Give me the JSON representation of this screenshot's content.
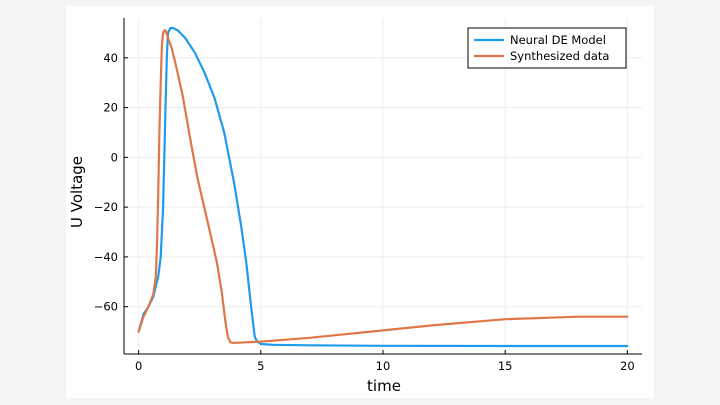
{
  "chart_data": {
    "type": "line",
    "title": "",
    "xlabel": "time",
    "ylabel": "U Voltage",
    "xlim": [
      -0.6,
      20.6
    ],
    "ylim": [
      -79,
      56
    ],
    "xticks": [
      0,
      5,
      10,
      15,
      20
    ],
    "yticks": [
      -60,
      -40,
      -20,
      0,
      20,
      40
    ],
    "grid": true,
    "legend_position": "top-right",
    "series": [
      {
        "name": "Neural DE Model",
        "color": "#1f9bed",
        "x": [
          0,
          0.2,
          0.4,
          0.6,
          0.8,
          0.9,
          1.0,
          1.05,
          1.1,
          1.15,
          1.2,
          1.3,
          1.4,
          1.6,
          1.9,
          2.3,
          2.7,
          3.1,
          3.5,
          3.9,
          4.2,
          4.4,
          4.6,
          4.75,
          4.85,
          5.0,
          5.5,
          7,
          10,
          15,
          20
        ],
        "y": [
          -70,
          -63,
          -60,
          -56,
          -48,
          -40,
          -20,
          0,
          20,
          40,
          50,
          52,
          52,
          51,
          48,
          42,
          34,
          24,
          10,
          -10,
          -28,
          -42,
          -60,
          -72,
          -74,
          -75,
          -75.3,
          -75.5,
          -75.7,
          -75.8,
          -75.8
        ]
      },
      {
        "name": "Synthesized data",
        "color": "#e0774a",
        "x": [
          0,
          0.2,
          0.4,
          0.6,
          0.7,
          0.75,
          0.8,
          0.85,
          0.9,
          0.95,
          1.0,
          1.05,
          1.1,
          1.2,
          1.35,
          1.5,
          1.8,
          2.1,
          2.4,
          2.8,
          3.2,
          3.4,
          3.55,
          3.65,
          3.75,
          3.85,
          4.0,
          5,
          7,
          10,
          12,
          15,
          18,
          20
        ],
        "y": [
          -70,
          -64,
          -60,
          -55,
          -48,
          -35,
          -15,
          10,
          30,
          45,
          50,
          51,
          51,
          48,
          44,
          38,
          25,
          8,
          -8,
          -25,
          -42,
          -54,
          -66,
          -72,
          -74.3,
          -74.5,
          -74.5,
          -74,
          -72.5,
          -69.5,
          -67.5,
          -65,
          -64,
          -64
        ]
      }
    ]
  }
}
